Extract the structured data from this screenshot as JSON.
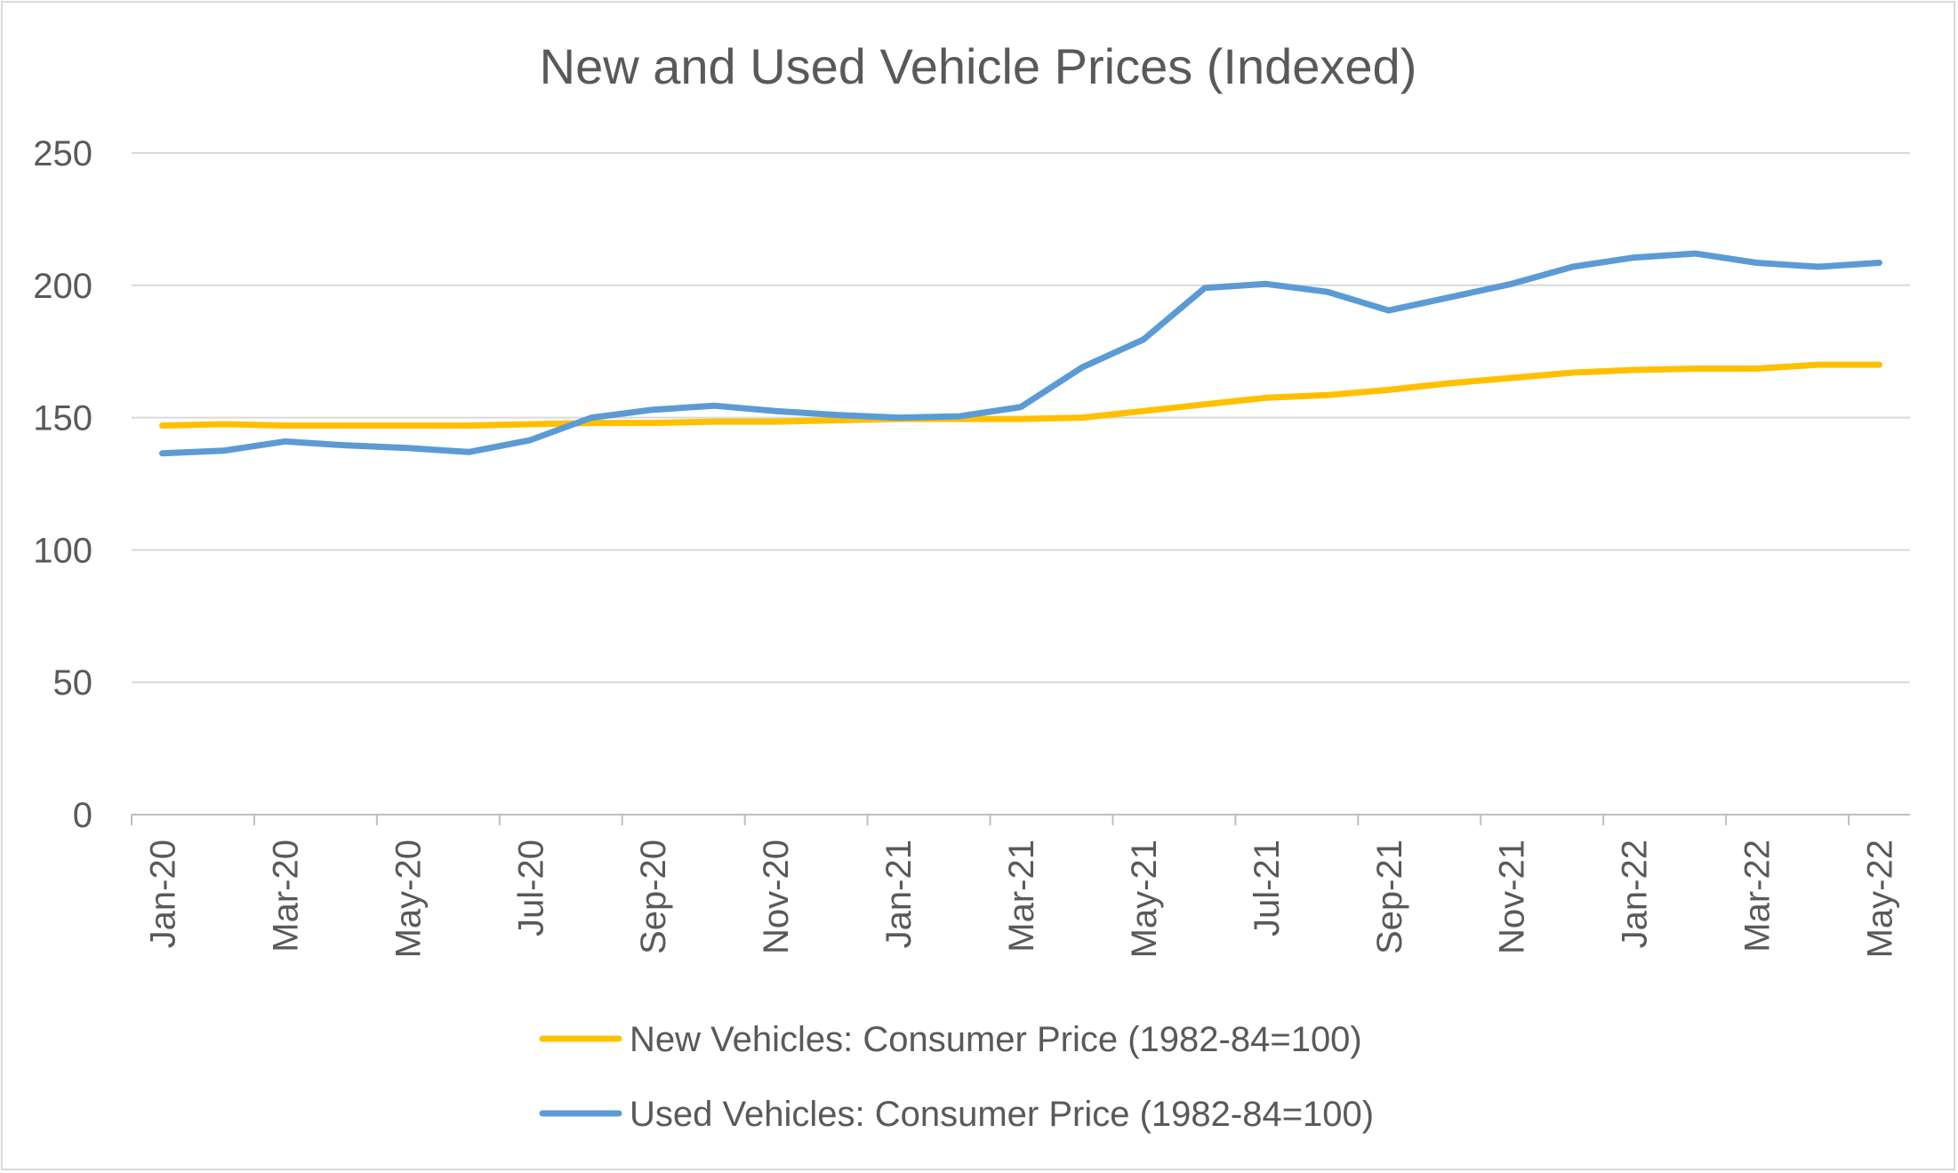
{
  "chart_data": {
    "type": "line",
    "title": "New and Used Vehicle Prices (Indexed)",
    "xlabel": "",
    "ylabel": "",
    "ylim": [
      0,
      250
    ],
    "yticks": [
      "0",
      "50",
      "100",
      "150",
      "200",
      "250"
    ],
    "grid": true,
    "legend_position": "bottom",
    "x": [
      "Jan-20",
      "Feb-20",
      "Mar-20",
      "Apr-20",
      "May-20",
      "Jun-20",
      "Jul-20",
      "Aug-20",
      "Sep-20",
      "Oct-20",
      "Nov-20",
      "Dec-20",
      "Jan-21",
      "Feb-21",
      "Mar-21",
      "Apr-21",
      "May-21",
      "Jun-21",
      "Jul-21",
      "Aug-21",
      "Sep-21",
      "Oct-21",
      "Nov-21",
      "Dec-21",
      "Jan-22",
      "Feb-22",
      "Mar-22",
      "Apr-22",
      "May-22"
    ],
    "xtick_labels": [
      "Jan-20",
      "",
      "Mar-20",
      "",
      "May-20",
      "",
      "Jul-20",
      "",
      "Sep-20",
      "",
      "Nov-20",
      "",
      "Jan-21",
      "",
      "Mar-21",
      "",
      "May-21",
      "",
      "Jul-21",
      "",
      "Sep-21",
      "",
      "Nov-21",
      "",
      "Jan-22",
      "",
      "Mar-22",
      "",
      "May-22"
    ],
    "series": [
      {
        "name": "New Vehicles: Consumer Price (1982-84=100)",
        "color": "#ffc000",
        "values": [
          147,
          147.5,
          147,
          147,
          147,
          147,
          147.5,
          148,
          148,
          148.5,
          148.5,
          149,
          149.5,
          149.5,
          149.5,
          150,
          152.5,
          155,
          157.5,
          158.5,
          160.5,
          163,
          165,
          167,
          168,
          168.5,
          168.5,
          170,
          170
        ]
      },
      {
        "name": "Used Vehicles: Consumer Price (1982-84=100)",
        "color": "#5b9bd5",
        "values": [
          136.5,
          137.5,
          141,
          139.5,
          138.5,
          137,
          141.5,
          150,
          153,
          154.5,
          152.5,
          151,
          150,
          150.5,
          154,
          169,
          179.5,
          199,
          200.5,
          197.5,
          190.5,
          195.5,
          200.5,
          207,
          210.5,
          212,
          208.5,
          207,
          208.5
        ]
      }
    ]
  }
}
